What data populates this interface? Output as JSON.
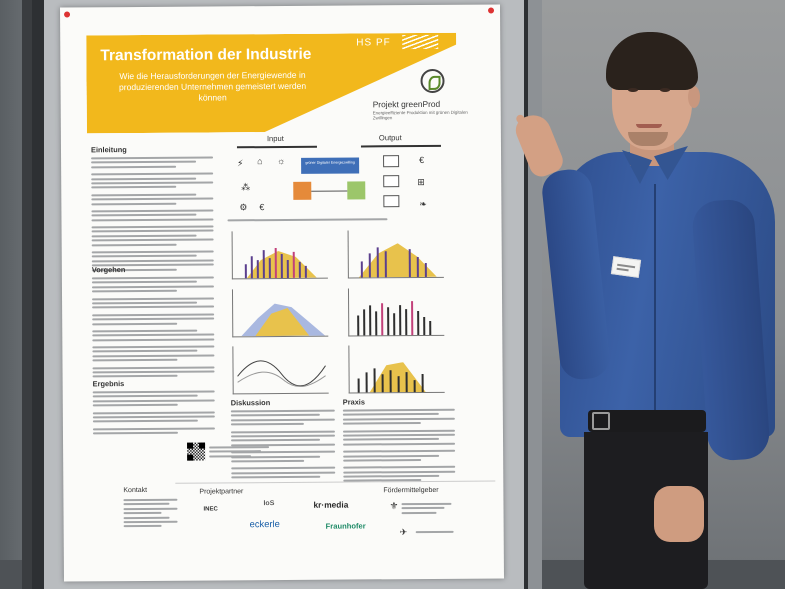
{
  "poster": {
    "institution": "HS PF",
    "title": "Transformation der Industrie",
    "subtitle": "Wie die Herausforderungen der Energiewende in produzierenden Unternehmen gemeistert werden können",
    "project_title": "Projekt greenProd",
    "project_sub": "Energieeffiziente Produktion mit grünen Digitalen Zwillingen",
    "sections": {
      "einleitung": "Einleitung",
      "vorgehen": "Vorgehen",
      "ergebnis": "Ergebnis",
      "diskussion": "Diskussion",
      "praxis": "Praxis"
    },
    "diagram": {
      "input": "Input",
      "output": "Output",
      "center_label": "grüner Digitaler Energiezwilling"
    },
    "footer": {
      "kontakt": "Kontakt",
      "projektpartner": "Projektpartner",
      "foerdermittelgeber": "Fördermittelgeber",
      "partners": [
        "IoS",
        "kr·media",
        "INEC",
        "eckerle",
        "Fraunhofer"
      ]
    },
    "colors": {
      "banner": "#f2b81c",
      "diagram_blue": "#3f6fb8",
      "diagram_orange": "#e58a3a",
      "diagram_green": "#9cc66a",
      "chart_purple": "#5b3f8e",
      "chart_yellow": "#e8c24c"
    }
  }
}
